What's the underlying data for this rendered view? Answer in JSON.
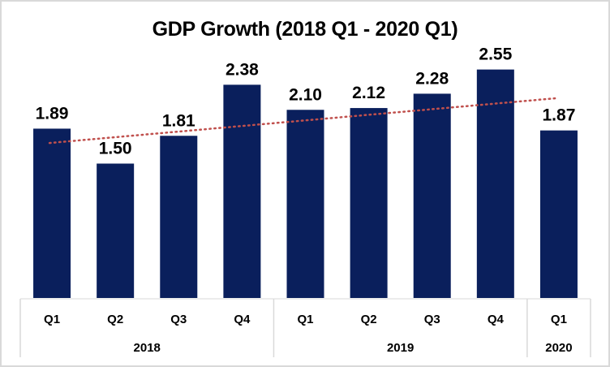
{
  "chart_data": {
    "type": "bar",
    "title": "GDP Growth (2018 Q1 - 2020 Q1)",
    "xlabel": "",
    "ylabel": "",
    "categories": [
      "Q1",
      "Q2",
      "Q3",
      "Q4",
      "Q1",
      "Q2",
      "Q3",
      "Q4",
      "Q1"
    ],
    "groups": [
      {
        "label": "2018",
        "count": 4
      },
      {
        "label": "2019",
        "count": 4
      },
      {
        "label": "2020",
        "count": 1
      }
    ],
    "values": [
      1.89,
      1.5,
      1.81,
      2.38,
      2.1,
      2.12,
      2.28,
      2.55,
      1.87
    ],
    "value_labels": [
      "1.89",
      "1.50",
      "1.81",
      "2.38",
      "2.10",
      "2.12",
      "2.28",
      "2.55",
      "1.87"
    ],
    "ylim": [
      0,
      2.9
    ],
    "grid": false,
    "legend": "none",
    "trendline": {
      "type": "linear",
      "style": "dotted",
      "color": "#c0504d",
      "start_value": 1.73,
      "end_value": 2.23
    },
    "bar_color": "#0a1f5c"
  }
}
